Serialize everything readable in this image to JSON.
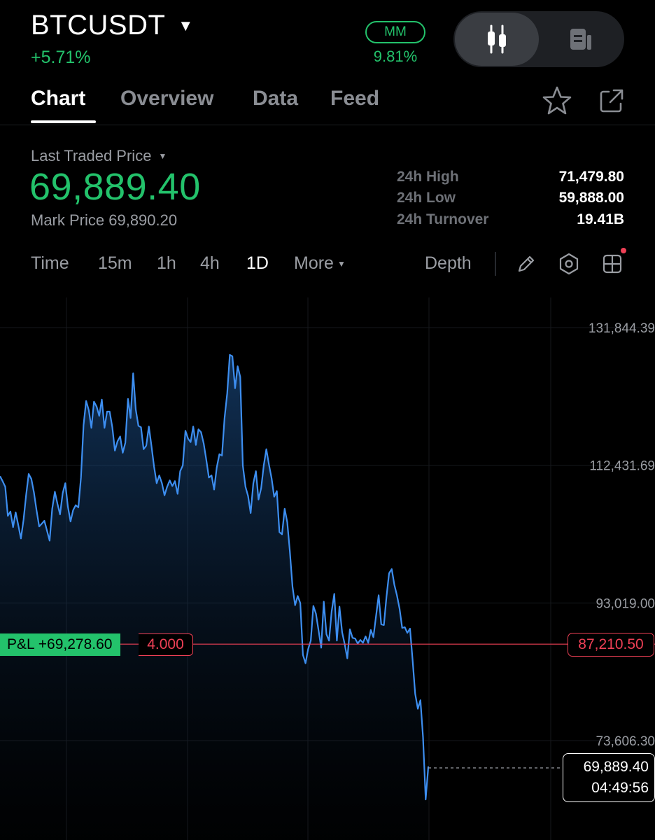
{
  "header": {
    "symbol": "BTCUSDT",
    "change_pct": "+5.71%",
    "mm_badge": "MM",
    "mm_value": "9.81%"
  },
  "tabs": [
    {
      "label": "Chart",
      "active": true
    },
    {
      "label": "Overview",
      "active": false
    },
    {
      "label": "Data",
      "active": false
    },
    {
      "label": "Feed",
      "active": false
    }
  ],
  "price": {
    "ltp_label": "Last Traded Price",
    "ltp_value": "69,889.40",
    "mark_price": "Mark Price 69,890.20",
    "stats": [
      {
        "label": "24h High",
        "value": "71,479.80"
      },
      {
        "label": "24h Low",
        "value": "59,888.00"
      },
      {
        "label": "24h Turnover",
        "value": "19.41B"
      }
    ]
  },
  "intervals": [
    {
      "label": "Time",
      "active": false
    },
    {
      "label": "15m",
      "active": false
    },
    {
      "label": "1h",
      "active": false
    },
    {
      "label": "4h",
      "active": false
    },
    {
      "label": "1D",
      "active": true
    },
    {
      "label": "More",
      "active": false
    }
  ],
  "depth_label": "Depth",
  "colors": {
    "up": "#23c26b",
    "down": "#ef4056",
    "line": "#3d8ef0",
    "grid": "#16181c"
  },
  "position": {
    "pnl_label": "P&L +69,278.60",
    "qty": "4.000",
    "entry_price": "87,210.50"
  },
  "last_price": {
    "value": "69,889.40",
    "countdown": "04:49:56"
  },
  "chart_data": {
    "type": "line",
    "y_ticks": [
      "131,844.39",
      "112,431.69",
      "93,019.00",
      "73,606.30"
    ],
    "y_tick_values": [
      131844.39,
      112431.69,
      93019.0,
      73606.3
    ],
    "entry_price_value": 87210.5,
    "last_price_value": 69889.4,
    "values": [
      110900,
      110200,
      109400,
      105300,
      105900,
      103700,
      105800,
      104000,
      102100,
      104700,
      108200,
      111200,
      110500,
      108600,
      106100,
      103800,
      104200,
      104600,
      103200,
      101800,
      106300,
      108700,
      107000,
      105500,
      108500,
      109900,
      106600,
      104500,
      106100,
      106800,
      106500,
      110700,
      118100,
      121500,
      120200,
      117700,
      121400,
      120700,
      119400,
      121700,
      117700,
      120000,
      120000,
      117800,
      114500,
      115800,
      116500,
      114200,
      115600,
      121800,
      119100,
      125400,
      120300,
      118000,
      117800,
      114700,
      115200,
      117900,
      115200,
      112200,
      109900,
      111000,
      109900,
      108200,
      109400,
      110300,
      109500,
      110200,
      108400,
      111600,
      112400,
      117300,
      116200,
      115700,
      117900,
      115300,
      117500,
      117100,
      115500,
      113200,
      110700,
      111000,
      109000,
      112100,
      114000,
      113800,
      119100,
      122600,
      128000,
      127800,
      123300,
      126400,
      124900,
      112400,
      109400,
      108100,
      105700,
      109900,
      111600,
      107600,
      109200,
      112400,
      114700,
      112500,
      110600,
      108000,
      108800,
      103000,
      102700,
      106300,
      104400,
      100300,
      95300,
      92700,
      94000,
      93000,
      85700,
      84500,
      86500,
      87700,
      92600,
      91500,
      89100,
      86700,
      93200,
      88600,
      87700,
      91800,
      94300,
      87700,
      92500,
      88900,
      87200,
      85200,
      89300,
      88100,
      88000,
      87300,
      87800,
      87400,
      88300,
      87400,
      89200,
      88200,
      91200,
      94100,
      90000,
      89900,
      93900,
      97200,
      97800,
      95600,
      94100,
      92200,
      89500,
      89600,
      88800,
      89400,
      85000,
      80200,
      78100,
      79300,
      74100,
      65300,
      69889.4
    ]
  }
}
